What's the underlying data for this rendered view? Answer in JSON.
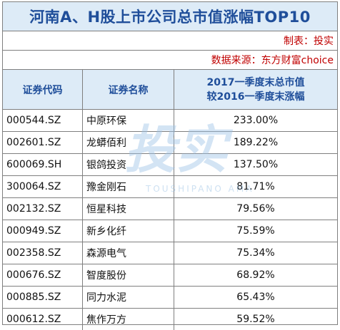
{
  "title": "河南A、H股上市公司总市值涨幅TOP10",
  "maker": "制表：投实",
  "source": "数据来源：东方财富choice",
  "header": {
    "code": "证券代码",
    "name": "证券名称",
    "change_line1": "2017一季度末总市值",
    "change_line2": "较2016一季度末涨幅"
  },
  "rows": [
    {
      "code": "000544.SZ",
      "name": "中原环保",
      "change": "233.00%"
    },
    {
      "code": "002601.SZ",
      "name": "龙蟒佰利",
      "change": "189.22%"
    },
    {
      "code": "600069.SH",
      "name": "银鸽投资",
      "change": "137.50%"
    },
    {
      "code": "300064.SZ",
      "name": "豫金刚石",
      "change": "81.71%"
    },
    {
      "code": "002132.SZ",
      "name": "恒星科技",
      "change": "79.56%"
    },
    {
      "code": "000949.SZ",
      "name": "新乡化纤",
      "change": "75.59%"
    },
    {
      "code": "002358.SZ",
      "name": "森源电气",
      "change": "75.34%"
    },
    {
      "code": "000676.SZ",
      "name": "智度股份",
      "change": "68.92%"
    },
    {
      "code": "000885.SZ",
      "name": "同力水泥",
      "change": "65.43%"
    },
    {
      "code": "000612.SZ",
      "name": "焦作万方",
      "change": "59.52%"
    }
  ],
  "watermark": {
    "glyphs": "投实",
    "latin": "TOUSHIPANO AMA",
    "color": "#9dc3e6"
  }
}
